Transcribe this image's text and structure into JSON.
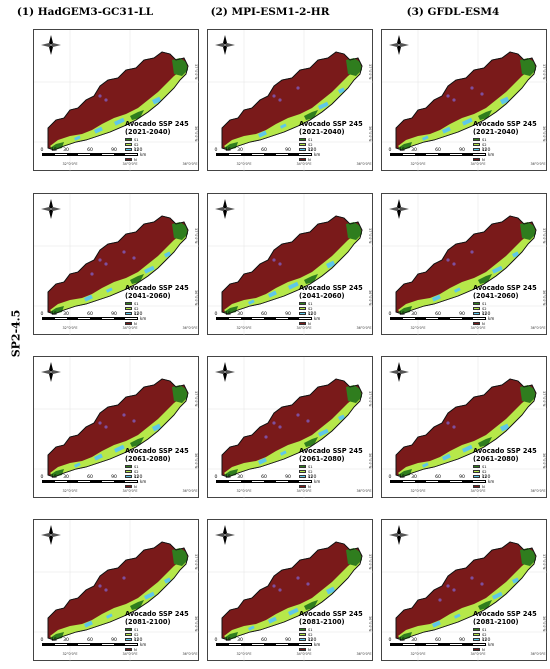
{
  "columns": [
    {
      "title": "(1) HadGEM3-GC31-LL"
    },
    {
      "title": "(2) MPI-ESM1-2-HR"
    },
    {
      "title": "(3) GFDL-ESM4"
    }
  ],
  "row_label": "SP2-4.5",
  "map_title": "Avocado SSP 245",
  "periods": [
    "(2021-2040)",
    "(2041-2060)",
    "(2061-2080)",
    "(2081-2100)"
  ],
  "legend_items": [
    {
      "label": "S1",
      "color": "#2f7d1e"
    },
    {
      "label": "S2",
      "color": "#b6e84a"
    },
    {
      "label": "S3",
      "color": "#5fc7e8"
    },
    {
      "label": "S4",
      "color": "#7f4f9e"
    },
    {
      "label": "N",
      "color": "#7a1a1a"
    }
  ],
  "scale": {
    "ticks": [
      "0",
      "15",
      "30",
      "60",
      "90",
      "120"
    ],
    "unit": "km"
  },
  "lon_ticks": [
    "32°0'0\"E",
    "34°0'0\"E",
    "36°0'0\"E"
  ],
  "lat_ticks": [
    "37°0'0\"N",
    "36°0'0\"N"
  ],
  "colors": {
    "N": "#7a1a1a",
    "S1": "#2f7d1e",
    "S2": "#b6e84a",
    "S3": "#5fc7e8",
    "S4": "#7f4f9e"
  }
}
